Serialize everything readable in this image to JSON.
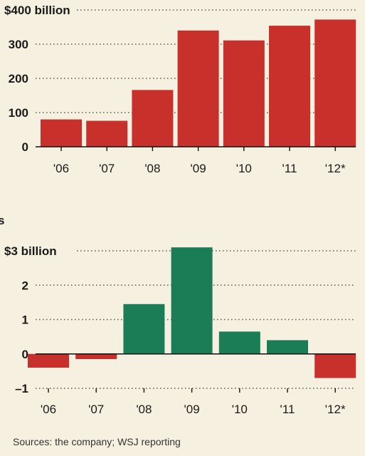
{
  "chart_data": [
    {
      "type": "bar",
      "categories": [
        "'06",
        "'07",
        "'08",
        "'09",
        "'10",
        "'11",
        "'12*"
      ],
      "values": [
        80,
        76,
        166,
        340,
        311,
        354,
        372
      ],
      "ylim": [
        0,
        400
      ],
      "yticks": [
        {
          "value": 0,
          "label": "0"
        },
        {
          "value": 100,
          "label": "100"
        },
        {
          "value": 200,
          "label": "200"
        },
        {
          "value": 300,
          "label": "300"
        },
        {
          "value": 400,
          "label": "$400 billion"
        }
      ],
      "colors": {
        "bar": "#c8302c"
      },
      "grid": true
    },
    {
      "type": "bar",
      "categories": [
        "'06",
        "'07",
        "'08",
        "'09",
        "'10",
        "'11",
        "'12*"
      ],
      "values": [
        -0.4,
        -0.15,
        1.45,
        3.1,
        0.65,
        0.4,
        -0.7
      ],
      "ylim": [
        -1,
        3
      ],
      "yticks": [
        {
          "value": -1,
          "label": "–1"
        },
        {
          "value": 0,
          "label": "0"
        },
        {
          "value": 1,
          "label": "1"
        },
        {
          "value": 2,
          "label": "2"
        },
        {
          "value": 3,
          "label": "$3 billion"
        }
      ],
      "colors": {
        "positive": "#1a7d55",
        "negative": "#c8302c"
      },
      "grid": true
    }
  ],
  "header_fragment": "s",
  "source_text": "Sources: the company; WSJ reporting"
}
